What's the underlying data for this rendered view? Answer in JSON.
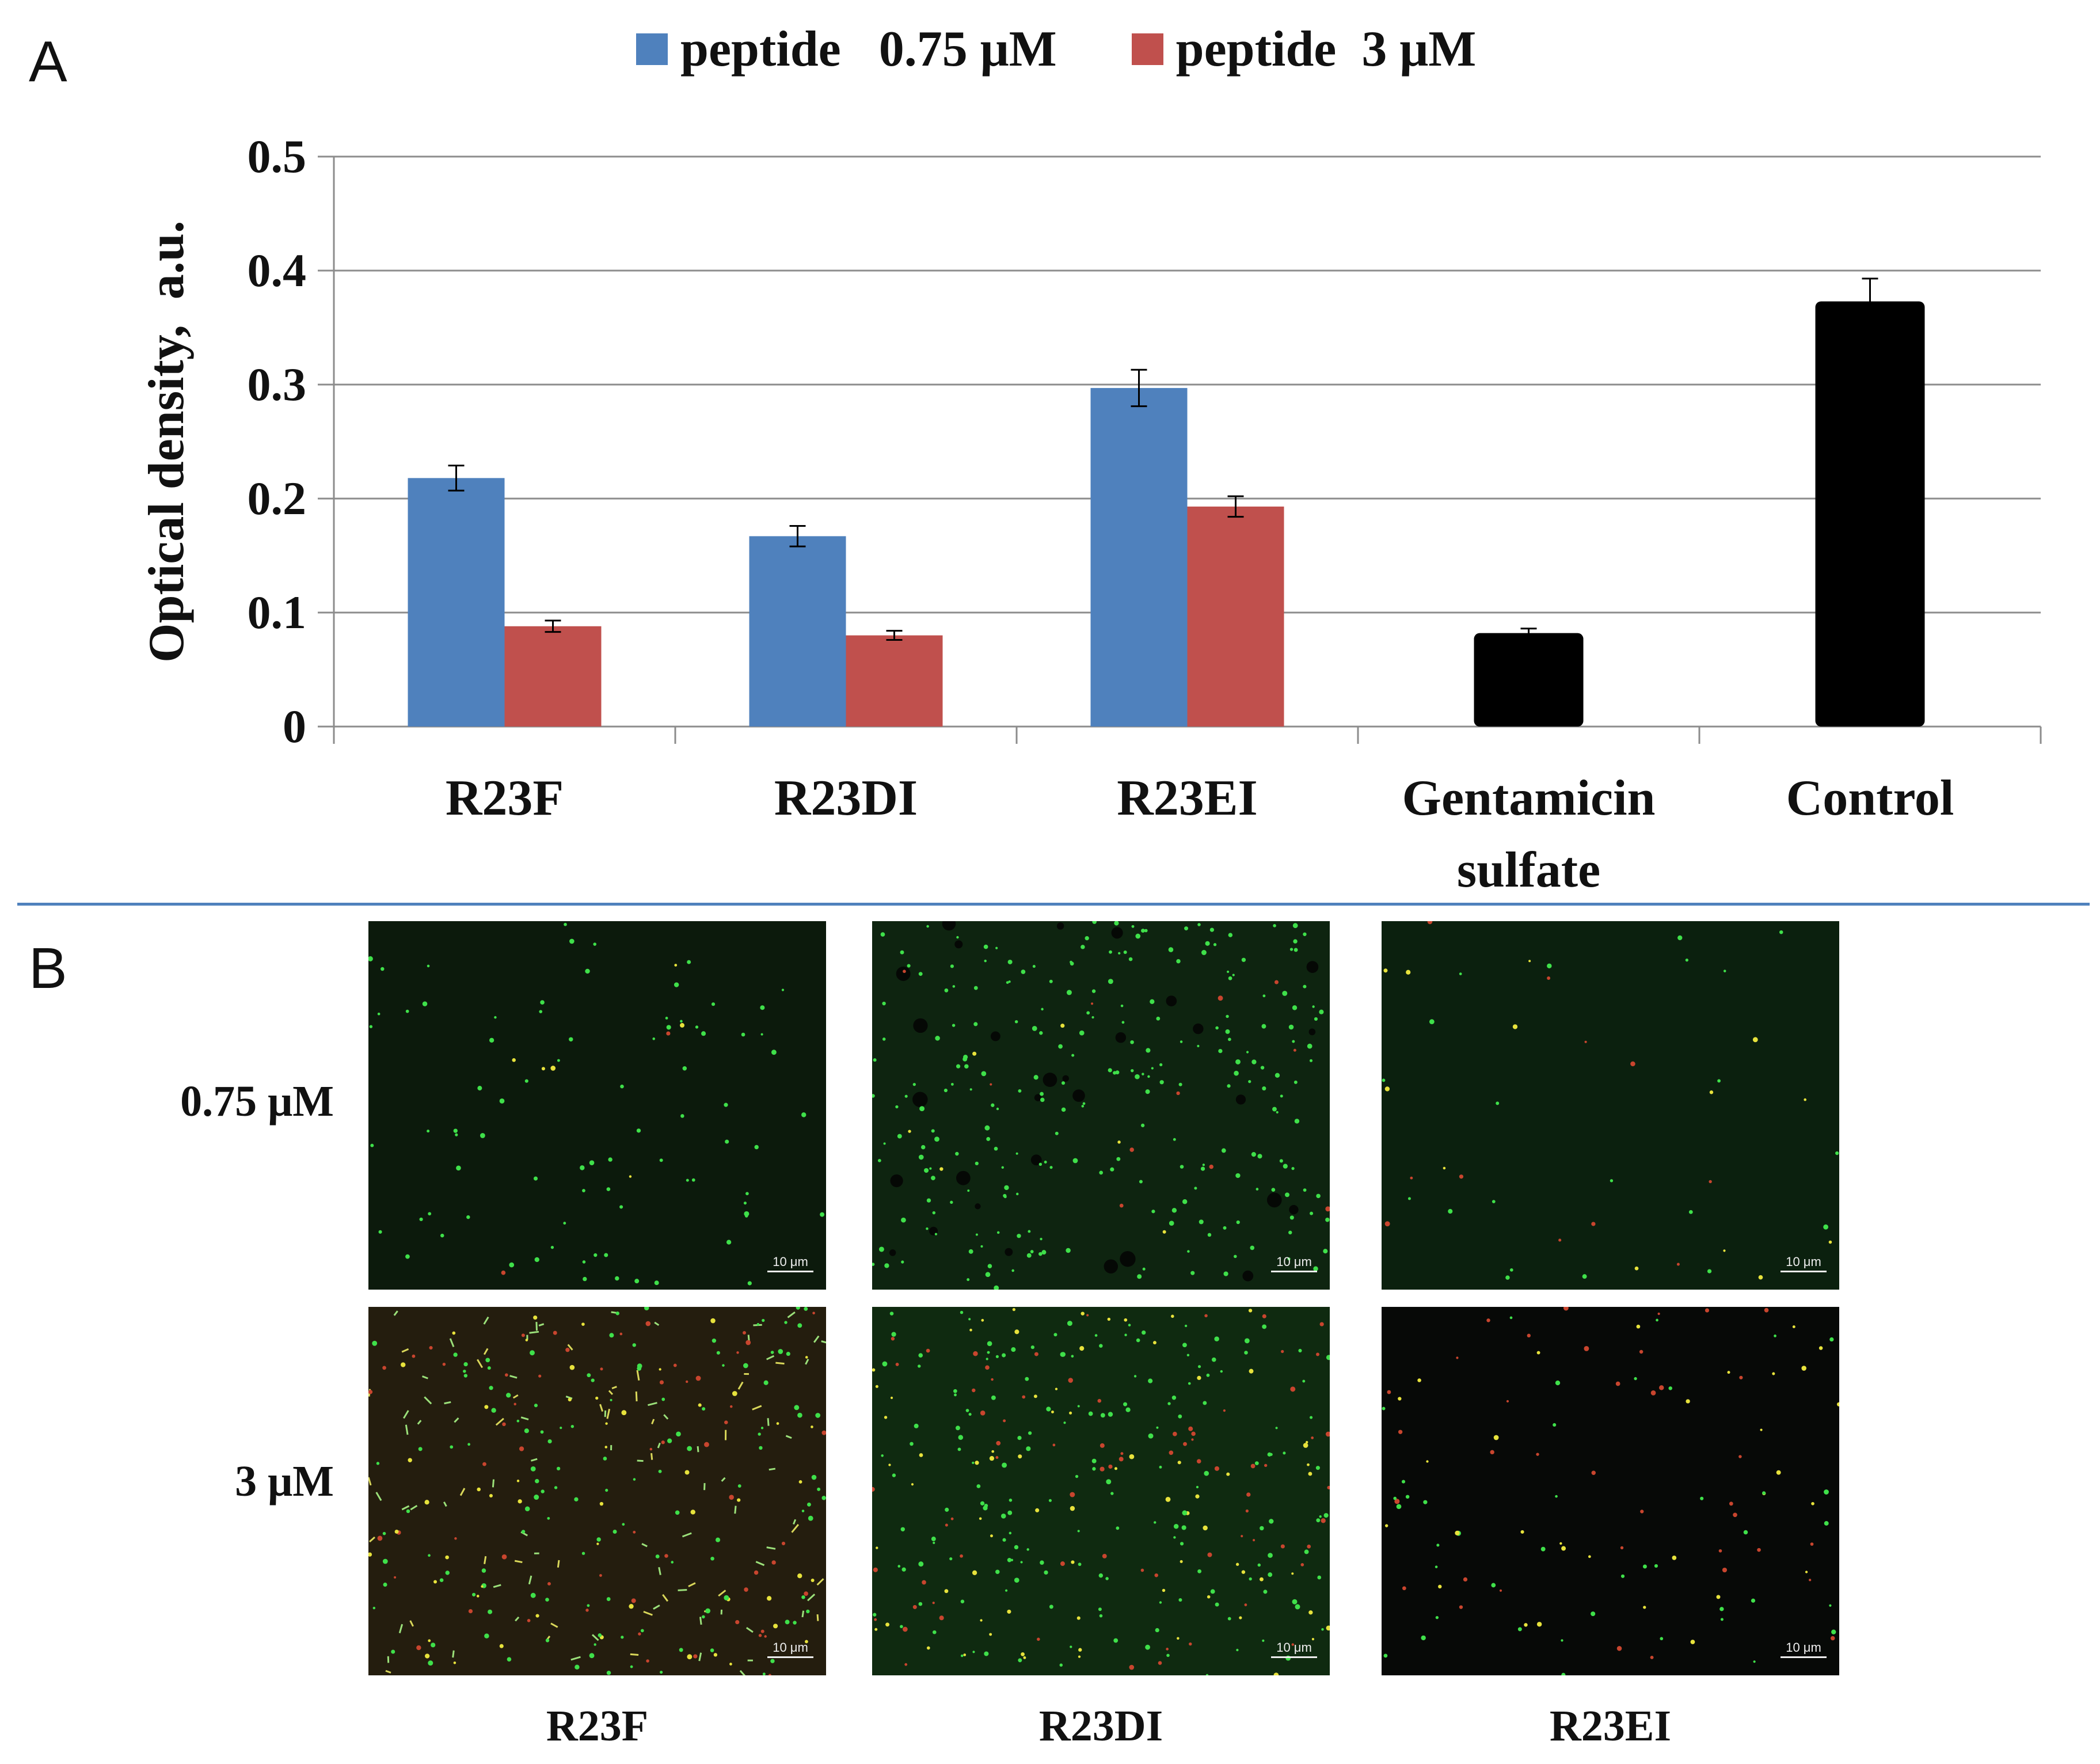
{
  "panel_a_label": "A",
  "panel_b_label": "B",
  "colors": {
    "blue": "#4f81bd",
    "red": "#c0504d",
    "black": "#000000",
    "grid": "#8c8c8c",
    "divider": "#4f81bd"
  },
  "chart_data": {
    "type": "bar",
    "title": "",
    "ylabel": "Optical density,  a.u.",
    "xlabel": "",
    "ylim": [
      0,
      0.5
    ],
    "yticks": [
      "0",
      "0.1",
      "0.2",
      "0.3",
      "0.4",
      "0.5"
    ],
    "grid": true,
    "legend_position": "top",
    "categories": [
      {
        "lines": [
          "R23F"
        ]
      },
      {
        "lines": [
          "R23DI"
        ]
      },
      {
        "lines": [
          "R23EI"
        ]
      },
      {
        "lines": [
          "Gentamicin",
          "sulfate"
        ]
      },
      {
        "lines": [
          "Control"
        ]
      }
    ],
    "series": [
      {
        "name": "peptide   0.75 μM",
        "color": "#4f81bd",
        "values": [
          0.218,
          0.167,
          0.297,
          null,
          null
        ],
        "errors": [
          0.011,
          0.009,
          0.016,
          null,
          null
        ]
      },
      {
        "name": "peptide  3 μM",
        "color": "#c0504d",
        "values": [
          0.088,
          0.08,
          0.193,
          null,
          null
        ],
        "errors": [
          0.005,
          0.004,
          0.009,
          null,
          null
        ]
      },
      {
        "name": "",
        "color": "#000000",
        "values": [
          null,
          null,
          null,
          0.082,
          0.373
        ],
        "errors": [
          null,
          null,
          null,
          0.004,
          0.02
        ]
      }
    ]
  },
  "panel_b": {
    "rows": [
      "0.75 μM",
      "3 μM"
    ],
    "cols": [
      "R23F",
      "R23DI",
      "R23EI"
    ],
    "scale_label": "10 μm"
  }
}
